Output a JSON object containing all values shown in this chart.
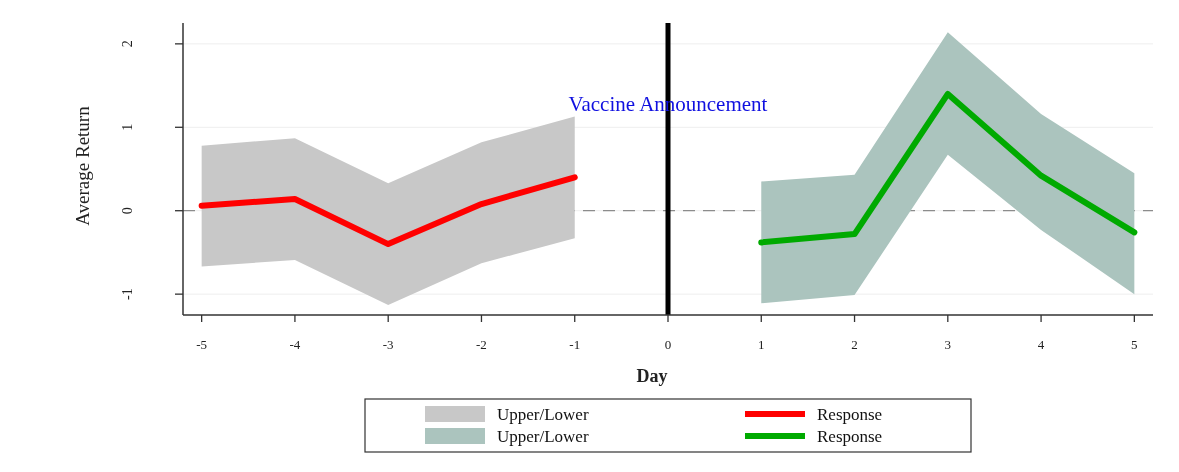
{
  "chart_data": {
    "type": "line",
    "xlabel": "Day",
    "ylabel": "Average Return",
    "xlim": [
      -5.2,
      5.2
    ],
    "xticks": [
      -5,
      -4,
      -3,
      -2,
      -1,
      0,
      1,
      2,
      3,
      4,
      5
    ],
    "ylim": [
      -1.25,
      2.25
    ],
    "yticks": [
      -1,
      0,
      1,
      2
    ],
    "grid": "y",
    "legend": "bottom",
    "series": [
      {
        "name": "Upper/Lower",
        "color": "#c8c8c8",
        "x": [
          -5,
          -4,
          -3,
          -2,
          -1
        ],
        "values": [
          null,
          null,
          null,
          null,
          null
        ],
        "lower": [
          -0.67,
          -0.59,
          -1.13,
          -0.63,
          -0.33
        ],
        "upper": [
          0.78,
          0.87,
          0.33,
          0.82,
          1.13
        ]
      },
      {
        "name": "Response",
        "color": "#ff0000",
        "x": [
          -5,
          -4,
          -3,
          -2,
          -1
        ],
        "values": [
          0.06,
          0.14,
          -0.4,
          0.08,
          0.4
        ]
      },
      {
        "name": "Upper/Lower",
        "color": "#abc4be",
        "x": [
          1,
          2,
          3,
          4,
          5
        ],
        "values": [
          null,
          null,
          null,
          null,
          null
        ],
        "lower": [
          -1.11,
          -1.01,
          0.67,
          -0.23,
          -1.0
        ],
        "upper": [
          0.35,
          0.43,
          2.14,
          1.16,
          0.45
        ]
      },
      {
        "name": "Response",
        "color": "#00aa00",
        "x": [
          1,
          2,
          3,
          4,
          5
        ],
        "values": [
          -0.38,
          -0.28,
          1.4,
          0.42,
          -0.26
        ]
      }
    ],
    "ref_lines": [
      {
        "axis": "y",
        "value": 0,
        "color": "#8c8c8c",
        "line_style": "dashed"
      },
      {
        "axis": "x",
        "value": 0,
        "color": "#000000",
        "line_style": "solid",
        "label": "Vaccine Announcement"
      }
    ]
  }
}
